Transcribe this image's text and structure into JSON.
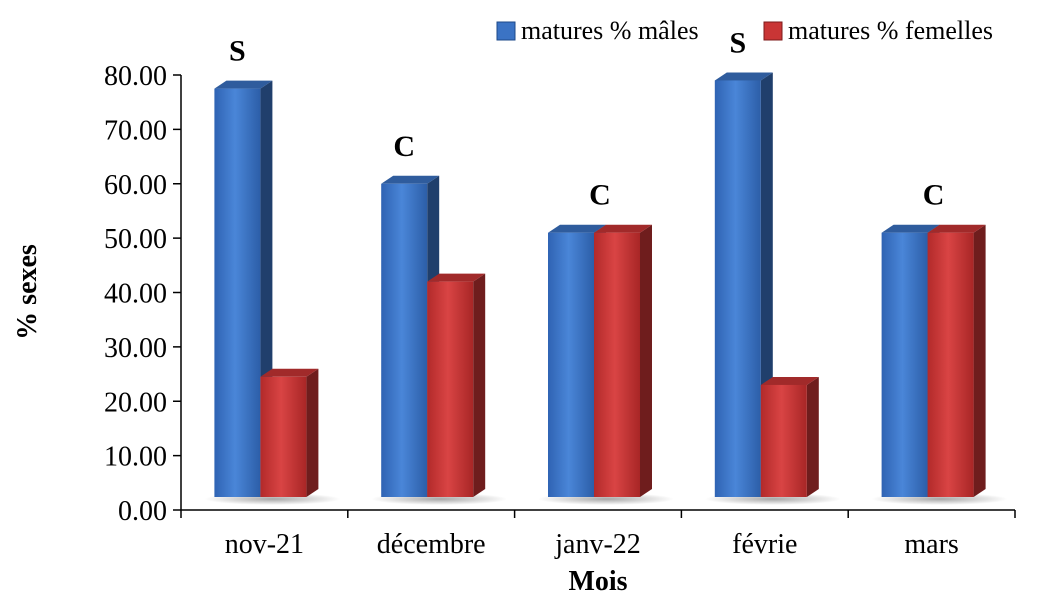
{
  "chart_data": {
    "type": "bar",
    "title": "",
    "xlabel": "Mois",
    "ylabel": "% sexes",
    "ylim": [
      0,
      80
    ],
    "yticks": [
      "0.00",
      "10.00",
      "20.00",
      "30.00",
      "40.00",
      "50.00",
      "60.00",
      "70.00",
      "80.00"
    ],
    "categories": [
      "nov-21",
      "décembre",
      "janv-22",
      "févrie",
      "mars"
    ],
    "series": [
      {
        "name": "matures % mâles",
        "color": "#3b73c4",
        "values": [
          77.5,
          60.0,
          51.0,
          79.0,
          51.0
        ]
      },
      {
        "name": "matures % femelles",
        "color": "#c93535",
        "values": [
          24.5,
          42.0,
          51.0,
          23.0,
          51.0
        ]
      }
    ],
    "annotations": [
      "S",
      "C",
      "C",
      "S",
      "C"
    ],
    "legend_position": "top-right",
    "grid": false
  }
}
